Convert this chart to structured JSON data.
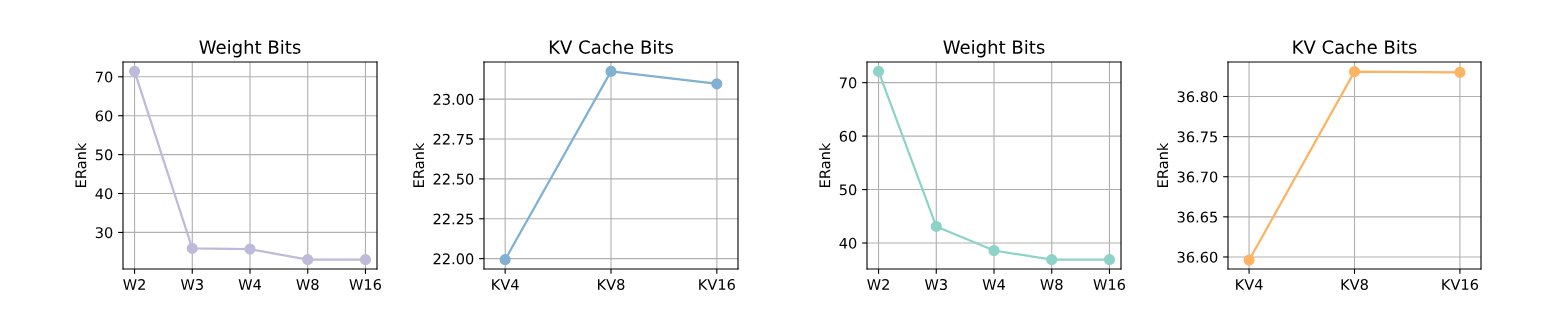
{
  "chart_data": [
    {
      "type": "line",
      "title": "Weight Bits",
      "ylabel": "ERank",
      "categories": [
        "W2",
        "W3",
        "W4",
        "W8",
        "W16"
      ],
      "series": [
        {
          "color": "#bebada",
          "values": [
            71.4,
            25.9,
            25.7,
            23.0,
            23.0
          ]
        }
      ],
      "ylim": [
        20.6,
        73.8
      ],
      "yticks": [
        30,
        40,
        50,
        60,
        70
      ],
      "grid": true,
      "marker": "circle",
      "line_style": "solid"
    },
    {
      "type": "line",
      "title": "KV Cache Bits",
      "ylabel": "ERank",
      "categories": [
        "KV4",
        "KV8",
        "KV16"
      ],
      "series": [
        {
          "color": "#80b1d3",
          "values": [
            21.994,
            23.174,
            23.096
          ]
        }
      ],
      "ylim": [
        21.935,
        23.233
      ],
      "yticks": [
        {
          "value": 22.0,
          "label": "22.00"
        },
        {
          "value": 22.25,
          "label": "22.25"
        },
        {
          "value": 22.5,
          "label": "22.50"
        },
        {
          "value": 22.75,
          "label": "22.75"
        },
        {
          "value": 23.0,
          "label": "23.00"
        }
      ],
      "grid": true,
      "marker": "circle",
      "line_style": "solid"
    },
    {
      "type": "line",
      "title": "Weight Bits",
      "ylabel": "ERank",
      "categories": [
        "W2",
        "W3",
        "W4",
        "W8",
        "W16"
      ],
      "series": [
        {
          "color": "#8dd3c7",
          "values": [
            72.1,
            43.1,
            38.6,
            36.9,
            36.9
          ]
        }
      ],
      "ylim": [
        35.14,
        73.86
      ],
      "yticks": [
        40,
        50,
        60,
        70
      ],
      "grid": true,
      "marker": "circle",
      "line_style": "solid"
    },
    {
      "type": "line",
      "title": "KV Cache Bits",
      "ylabel": "ERank",
      "categories": [
        "KV4",
        "KV8",
        "KV16"
      ],
      "series": [
        {
          "color": "#fdb462",
          "values": [
            36.596,
            36.831,
            36.83
          ]
        }
      ],
      "ylim": [
        36.585,
        36.843
      ],
      "yticks": [
        {
          "value": 36.6,
          "label": "36.60"
        },
        {
          "value": 36.65,
          "label": "36.65"
        },
        {
          "value": 36.7,
          "label": "36.70"
        },
        {
          "value": 36.75,
          "label": "36.75"
        },
        {
          "value": 36.8,
          "label": "36.80"
        }
      ],
      "grid": true,
      "marker": "circle",
      "line_style": "solid"
    }
  ]
}
